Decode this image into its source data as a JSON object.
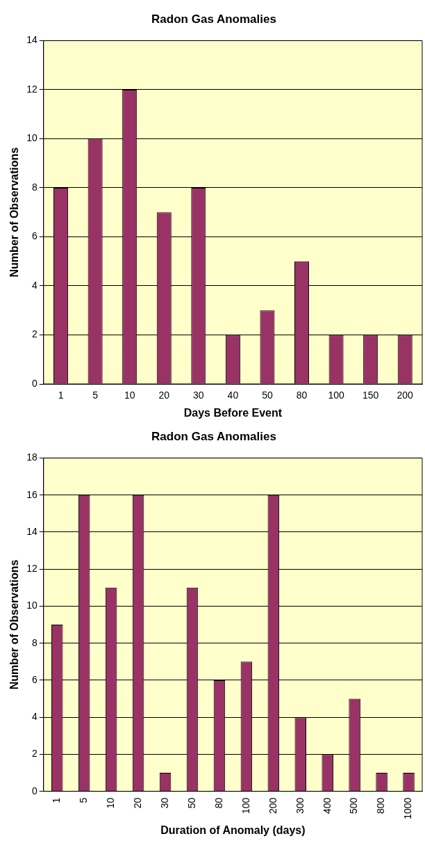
{
  "chart_data": [
    {
      "type": "bar",
      "title": "Radon Gas Anomalies",
      "xlabel": "Days Before Event",
      "ylabel": "Number of Observations",
      "categories": [
        "1",
        "5",
        "10",
        "20",
        "30",
        "40",
        "50",
        "80",
        "100",
        "150",
        "200"
      ],
      "values": [
        8,
        10,
        12,
        7,
        8,
        2,
        3,
        5,
        2,
        2,
        2
      ],
      "color": "#993366",
      "ylim": [
        0,
        14
      ],
      "yticks": [
        0,
        2,
        4,
        6,
        8,
        10,
        12,
        14
      ],
      "grid": "y"
    },
    {
      "type": "bar",
      "title": "Radon Gas Anomalies",
      "xlabel": "Duration of Anomaly (days)",
      "ylabel": "Number of Observations",
      "categories": [
        "1",
        "5",
        "10",
        "20",
        "30",
        "50",
        "80",
        "100",
        "200",
        "300",
        "400",
        "500",
        "800",
        "1000"
      ],
      "values": [
        9,
        16,
        11,
        16,
        1,
        11,
        6,
        7,
        16,
        4,
        2,
        5,
        1,
        1
      ],
      "color": "#993366",
      "ylim": [
        0,
        18
      ],
      "yticks": [
        0,
        2,
        4,
        6,
        8,
        10,
        12,
        14,
        16,
        18
      ],
      "grid": "y"
    }
  ]
}
